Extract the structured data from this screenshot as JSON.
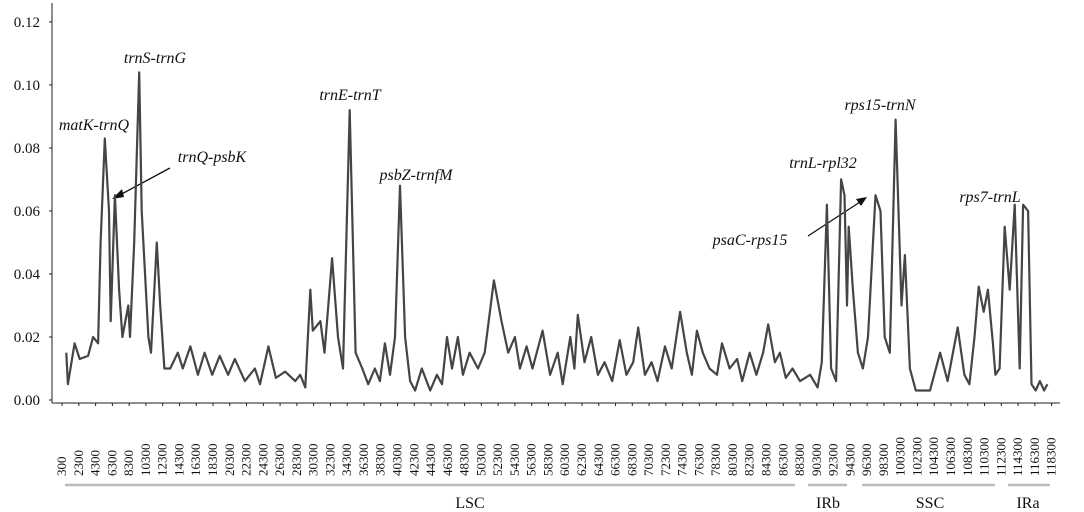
{
  "chart_data": {
    "type": "line",
    "x": [
      800,
      1000,
      1800,
      2400,
      3400,
      4000,
      4600,
      4900,
      5400,
      5900,
      6100,
      6600,
      7100,
      7500,
      8200,
      8400,
      8900,
      9500,
      9800,
      10600,
      10900,
      11600,
      12000,
      12500,
      13200,
      14100,
      14700,
      15600,
      16500,
      17300,
      18200,
      19100,
      20100,
      20900,
      22100,
      23300,
      23900,
      24900,
      25800,
      26900,
      28100,
      28700,
      29300,
      29900,
      30200,
      31100,
      31600,
      32500,
      33200,
      33800,
      34600,
      35300,
      36100,
      36800,
      37600,
      38200,
      38800,
      39400,
      40000,
      40600,
      41200,
      41800,
      42400,
      43200,
      44200,
      45000,
      45600,
      46200,
      46800,
      47500,
      48100,
      48900,
      49900,
      50700,
      51800,
      52700,
      53500,
      54300,
      54900,
      55700,
      56400,
      57600,
      58500,
      59400,
      60000,
      60900,
      61400,
      61800,
      62600,
      63400,
      64200,
      65000,
      65900,
      66800,
      67600,
      68400,
      69000,
      69800,
      70600,
      71300,
      72200,
      73000,
      74000,
      74800,
      75400,
      76000,
      76700,
      77500,
      78400,
      79000,
      79900,
      80800,
      81400,
      82300,
      83100,
      83900,
      84500,
      85300,
      85900,
      86600,
      87400,
      88300,
      89500,
      90400,
      90900,
      91500,
      92000,
      92600,
      93200,
      93600,
      93900,
      94100,
      94600,
      95200,
      95800,
      96400,
      97300,
      97900,
      98400,
      99000,
      99700,
      100400,
      100800,
      101400,
      102100,
      103800,
      105000,
      105900,
      107100,
      107900,
      108500,
      109100,
      109600,
      110200,
      110700,
      111300,
      111600,
      112100,
      112700,
      113300,
      113900,
      114500,
      114900,
      115500,
      115900,
      116400,
      116900,
      117400,
      117800
    ],
    "series": [
      {
        "color": "#454545",
        "values": [
          0.015,
          0.005,
          0.018,
          0.013,
          0.014,
          0.02,
          0.018,
          0.05,
          0.083,
          0.06,
          0.025,
          0.065,
          0.035,
          0.02,
          0.03,
          0.02,
          0.05,
          0.104,
          0.06,
          0.02,
          0.015,
          0.05,
          0.03,
          0.01,
          0.01,
          0.015,
          0.01,
          0.017,
          0.008,
          0.015,
          0.008,
          0.014,
          0.008,
          0.013,
          0.006,
          0.01,
          0.005,
          0.017,
          0.007,
          0.009,
          0.006,
          0.008,
          0.004,
          0.035,
          0.022,
          0.025,
          0.015,
          0.045,
          0.02,
          0.01,
          0.092,
          0.015,
          0.01,
          0.005,
          0.01,
          0.006,
          0.018,
          0.008,
          0.02,
          0.068,
          0.02,
          0.006,
          0.003,
          0.01,
          0.003,
          0.008,
          0.005,
          0.02,
          0.01,
          0.02,
          0.008,
          0.015,
          0.01,
          0.015,
          0.038,
          0.025,
          0.015,
          0.02,
          0.01,
          0.017,
          0.01,
          0.022,
          0.008,
          0.015,
          0.005,
          0.02,
          0.01,
          0.027,
          0.012,
          0.02,
          0.008,
          0.012,
          0.006,
          0.019,
          0.008,
          0.012,
          0.023,
          0.008,
          0.012,
          0.006,
          0.017,
          0.01,
          0.028,
          0.015,
          0.008,
          0.022,
          0.015,
          0.01,
          0.008,
          0.018,
          0.01,
          0.013,
          0.006,
          0.015,
          0.008,
          0.015,
          0.024,
          0.012,
          0.015,
          0.007,
          0.01,
          0.006,
          0.008,
          0.004,
          0.012,
          0.062,
          0.01,
          0.006,
          0.07,
          0.065,
          0.03,
          0.055,
          0.035,
          0.015,
          0.01,
          0.02,
          0.065,
          0.06,
          0.02,
          0.015,
          0.089,
          0.03,
          0.046,
          0.01,
          0.003,
          0.003,
          0.015,
          0.006,
          0.023,
          0.008,
          0.005,
          0.02,
          0.036,
          0.028,
          0.035,
          0.018,
          0.008,
          0.01,
          0.055,
          0.035,
          0.062,
          0.01,
          0.062,
          0.06,
          0.005,
          0.003,
          0.006,
          0.003,
          0.005
        ]
      }
    ],
    "xlim": [
      -900,
      119300
    ],
    "xticks": [
      300,
      2300,
      4300,
      6300,
      8300,
      10300,
      12300,
      14300,
      16300,
      18300,
      20300,
      22300,
      24300,
      26300,
      28300,
      30300,
      32300,
      34300,
      36300,
      38300,
      40300,
      42300,
      44300,
      46300,
      48300,
      50300,
      52300,
      54300,
      56300,
      58300,
      60300,
      62300,
      64300,
      66300,
      68300,
      70300,
      72300,
      74300,
      76300,
      78300,
      80300,
      82300,
      84300,
      86300,
      88300,
      90300,
      92300,
      94300,
      96300,
      98300,
      100300,
      102300,
      104300,
      106300,
      108300,
      110300,
      112300,
      114300,
      116300,
      118300
    ],
    "ylim": [
      0,
      0.126
    ],
    "yticks": [
      {
        "value": 0,
        "label": "0.00"
      },
      0.02,
      0.04,
      0.06,
      0.08,
      {
        "value": 0.1,
        "label": "0.10"
      },
      0.12
    ],
    "annotations": [
      "trnS-trnG",
      "matK-trnQ",
      "trnQ-psbK",
      "trnE-trnT",
      "psbZ-trnfM",
      "trnL-rpl32",
      "psaC-rps15",
      "rps15-trnN",
      "rps7-trnL"
    ],
    "regions": [
      "LSC",
      "IRb",
      "SSC",
      "IRa"
    ]
  }
}
